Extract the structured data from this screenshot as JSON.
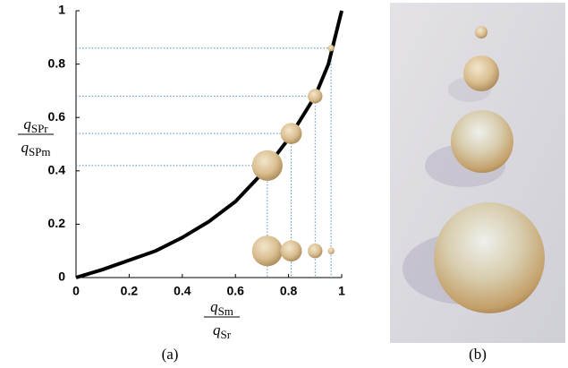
{
  "chart_data": {
    "type": "line",
    "x": [
      0,
      0.1,
      0.2,
      0.3,
      0.4,
      0.5,
      0.6,
      0.7,
      0.8,
      0.9,
      0.95,
      1
    ],
    "values": [
      0,
      0.03,
      0.065,
      0.1,
      0.15,
      0.21,
      0.285,
      0.39,
      0.52,
      0.68,
      0.8,
      1
    ],
    "color": "#000000",
    "spheres": {
      "x": [
        0.72,
        0.81,
        0.9,
        0.96
      ],
      "y": [
        0.42,
        0.54,
        0.68,
        0.86
      ],
      "base_y": 0.1,
      "diameters": [
        0.115,
        0.08,
        0.055,
        0.025
      ]
    },
    "guide_color": "#4f8fc8",
    "xlim": [
      0,
      1
    ],
    "ylim": [
      0,
      1
    ],
    "xticks": [
      0,
      0.2,
      0.4,
      0.6,
      0.8,
      1
    ],
    "yticks": [
      0,
      0.2,
      0.4,
      0.6,
      0.8,
      1
    ],
    "y_label": {
      "numerator": {
        "symbol": "q",
        "subscript": "SPr"
      },
      "denominator": {
        "symbol": "q",
        "subscript": "SPm"
      }
    },
    "x_label": {
      "numerator": {
        "symbol": "q",
        "subscript": "Sm"
      },
      "denominator": {
        "symbol": "q",
        "subscript": "Sr"
      }
    }
  },
  "captions": {
    "a": "(a)",
    "b": "(b)"
  }
}
